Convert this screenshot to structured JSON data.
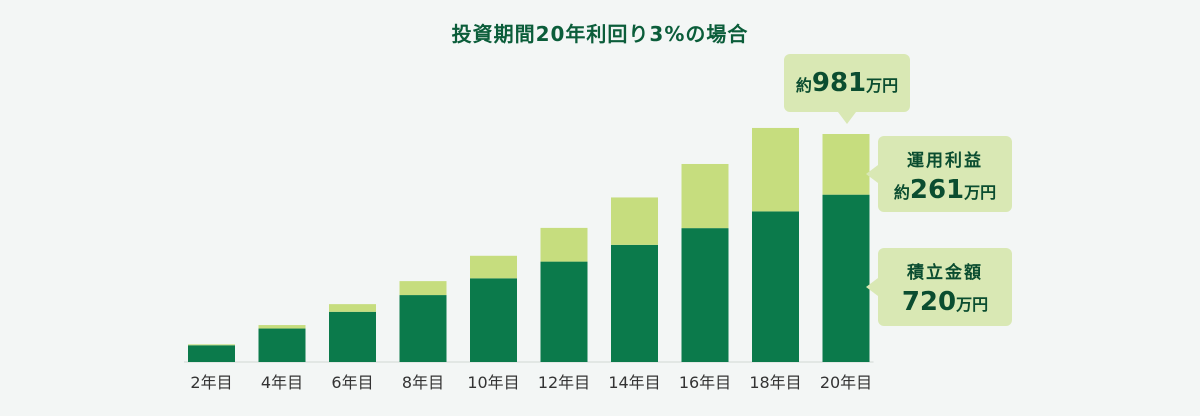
{
  "chart_data": {
    "type": "bar",
    "stacked": true,
    "title": "投資期間20年利回り3%の場合",
    "categories": [
      "2年目",
      "4年目",
      "6年目",
      "8年目",
      "10年目",
      "12年目",
      "14年目",
      "16年目",
      "18年目",
      "20年目"
    ],
    "series": [
      {
        "name": "積立金額",
        "color": "#0b7a4b",
        "values": [
          72,
          144,
          216,
          288,
          360,
          432,
          504,
          576,
          648,
          720
        ]
      },
      {
        "name": "運用利益",
        "color": "#c6dd7e",
        "values": [
          4,
          15,
          33,
          60,
          97,
          145,
          204,
          276,
          359,
          261
        ]
      }
    ],
    "ylim": [
      0,
      1000
    ],
    "grid": false
  },
  "callouts": {
    "total": {
      "prefix": "約",
      "value": "981",
      "unit": "万円"
    },
    "profit": {
      "label": "運用利益",
      "prefix": "約",
      "value": "261",
      "unit": "万円"
    },
    "principal": {
      "label": "積立金額",
      "value": "720",
      "unit": "万円"
    }
  }
}
